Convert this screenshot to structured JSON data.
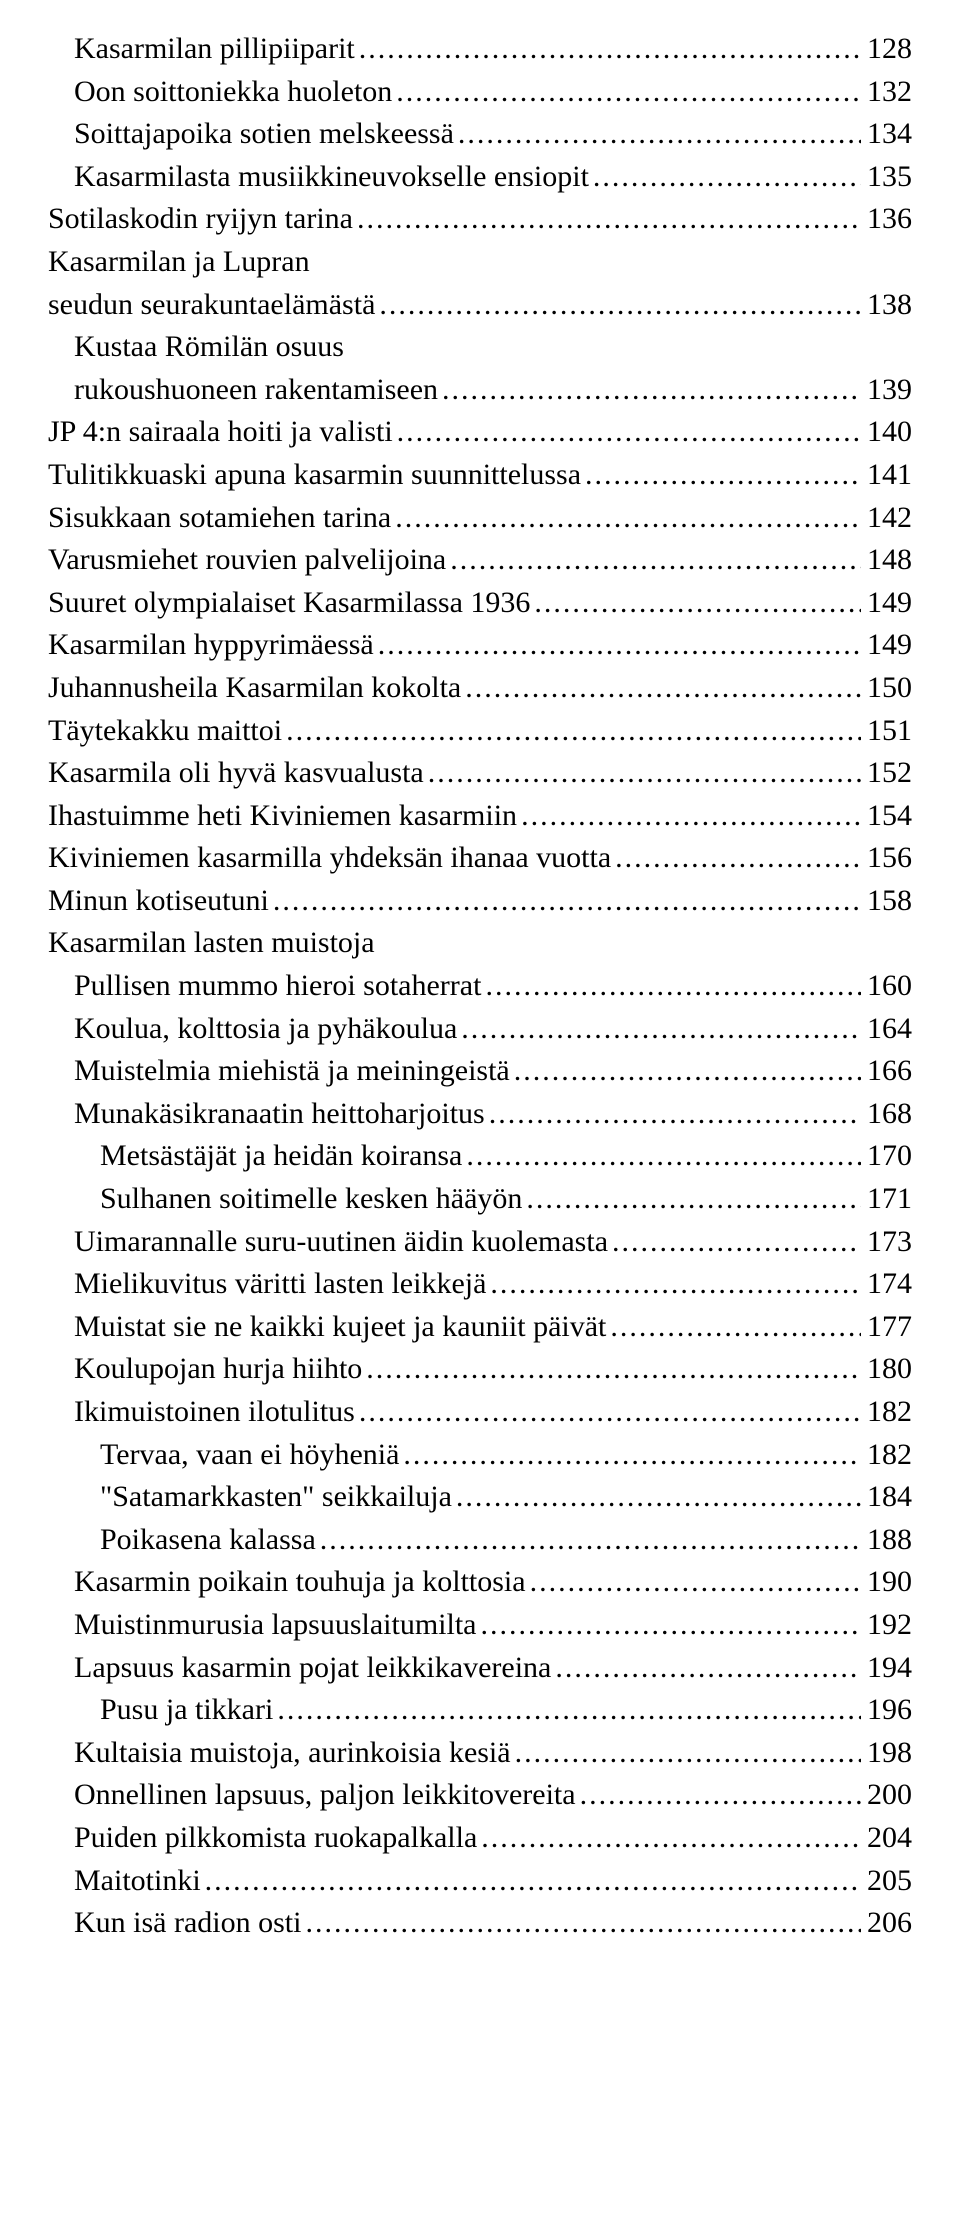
{
  "toc": [
    {
      "label": "Kasarmilan pillipiiparit",
      "page": "128",
      "indent": 1
    },
    {
      "label": "Oon soittoniekka huoleton",
      "page": "132",
      "indent": 1
    },
    {
      "label": "Soittajapoika sotien melskeessä",
      "page": "134",
      "indent": 1
    },
    {
      "label": "Kasarmilasta musiikkineuvokselle ensiopit",
      "page": "135",
      "indent": 1
    },
    {
      "label": "Sotilaskodin ryijyn tarina",
      "page": "136",
      "indent": 0
    },
    {
      "label": "Kasarmilan ja Lupran",
      "heading": true,
      "indent": 0
    },
    {
      "label": "seudun seurakuntaelämästä",
      "page": "138",
      "indent": 0
    },
    {
      "label": "Kustaa Römilän osuus",
      "heading": true,
      "indent": 1
    },
    {
      "label": "rukoushuoneen rakentamiseen",
      "page": "139",
      "indent": 1
    },
    {
      "label": "JP 4:n sairaala hoiti ja valisti",
      "page": "140",
      "indent": 0
    },
    {
      "label": "Tulitikkuaski apuna kasarmin suunnittelussa",
      "page": "141",
      "indent": 0
    },
    {
      "label": "Sisukkaan sotamiehen tarina",
      "page": "142",
      "indent": 0
    },
    {
      "label": "Varusmiehet rouvien palvelijoina",
      "page": "148",
      "indent": 0
    },
    {
      "label": "Suuret olympialaiset Kasarmilassa 1936",
      "page": "149",
      "indent": 0
    },
    {
      "label": "Kasarmilan hyppyrimäessä",
      "page": "149",
      "indent": 0
    },
    {
      "label": "Juhannusheila Kasarmilan kokolta",
      "page": "150",
      "indent": 0
    },
    {
      "label": "Täytekakku maittoi",
      "page": "151",
      "indent": 0
    },
    {
      "label": "Kasarmila oli hyvä kasvualusta",
      "page": "152",
      "indent": 0
    },
    {
      "label": "Ihastuimme heti Kiviniemen kasarmiin",
      "page": "154",
      "indent": 0
    },
    {
      "label": "Kiviniemen kasarmilla yhdeksän ihanaa vuotta",
      "page": "156",
      "indent": 0
    },
    {
      "label": "Minun kotiseutuni",
      "page": "158",
      "indent": 0
    },
    {
      "label": "Kasarmilan lasten muistoja",
      "heading": true,
      "indent": 0
    },
    {
      "label": "Pullisen mummo hieroi sotaherrat",
      "page": "160",
      "indent": 1
    },
    {
      "label": "Koulua, kolttosia ja pyhäkoulua",
      "page": "164",
      "indent": 1
    },
    {
      "label": "Muistelmia miehistä ja meiningeistä",
      "page": "166",
      "indent": 1
    },
    {
      "label": "Munakäsikranaatin heittoharjoitus",
      "page": "168",
      "indent": 1
    },
    {
      "label": "Metsästäjät ja heidän koiransa",
      "page": "170",
      "indent": 2
    },
    {
      "label": "Sulhanen soitimelle kesken hääyön",
      "page": "171",
      "indent": 2
    },
    {
      "label": "Uimarannalle suru-uutinen äidin kuolemasta",
      "page": "173",
      "indent": 1
    },
    {
      "label": "Mielikuvitus väritti lasten leikkejä",
      "page": "174",
      "indent": 1
    },
    {
      "label": "Muistat sie ne kaikki kujeet ja kauniit päivät",
      "page": "177",
      "indent": 1
    },
    {
      "label": "Koulupojan hurja hiihto",
      "page": "180",
      "indent": 1
    },
    {
      "label": "Ikimuistoinen ilotulitus",
      "page": "182",
      "indent": 1
    },
    {
      "label": "Tervaa, vaan ei höyheniä",
      "page": "182",
      "indent": 2
    },
    {
      "label": "\"Satamarkkasten\" seikkailuja",
      "page": "184",
      "indent": 2
    },
    {
      "label": "Poikasena kalassa",
      "page": "188",
      "indent": 2
    },
    {
      "label": "Kasarmin poikain touhuja ja kolttosia",
      "page": "190",
      "indent": 1
    },
    {
      "label": "Muistinmurusia lapsuuslaitumilta",
      "page": "192",
      "indent": 1
    },
    {
      "label": "Lapsuus kasarmin pojat leikkikavereina",
      "page": "194",
      "indent": 1
    },
    {
      "label": "Pusu ja tikkari",
      "page": "196",
      "indent": 2
    },
    {
      "label": "Kultaisia muistoja, aurinkoisia kesiä",
      "page": "198",
      "indent": 1
    },
    {
      "label": "Onnellinen lapsuus, paljon leikkitovereita",
      "page": "200",
      "indent": 1
    },
    {
      "label": "Puiden pilkkomista ruokapalkalla",
      "page": "204",
      "indent": 1
    },
    {
      "label": "Maitotinki",
      "page": "205",
      "indent": 1
    },
    {
      "label": "Kun isä radion osti",
      "page": "206",
      "indent": 1
    }
  ]
}
